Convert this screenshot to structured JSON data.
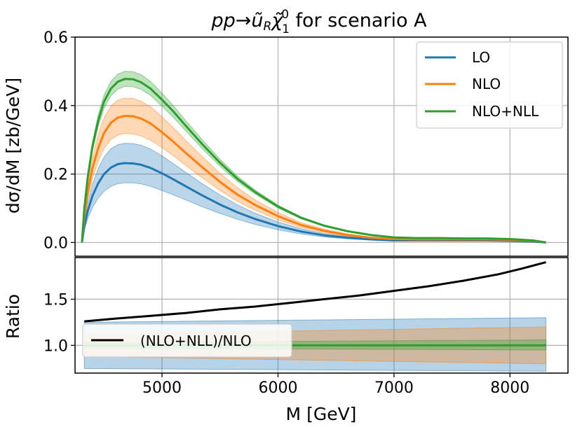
{
  "chart_data": [
    {
      "type": "line",
      "panel": "top",
      "title_parts": {
        "main": "pp→ũ",
        "sub": "R",
        "chi": "χ̃",
        "sup": "0",
        "sub2": "1",
        "rest": " for scenario A"
      },
      "xlabel": "M [GeV]",
      "ylabel": "dσ/dM [zb/GeV]",
      "xlim": [
        4250,
        8500
      ],
      "ylim": [
        -0.04,
        0.6
      ],
      "yticks": [
        0.0,
        0.2,
        0.4,
        0.6
      ],
      "ytick_labels": [
        "0.0",
        "0.2",
        "0.4",
        "0.6"
      ],
      "grid": true,
      "legend_position": "top-right",
      "x": [
        4310,
        4330,
        4360,
        4400,
        4450,
        4500,
        4560,
        4620,
        4680,
        4750,
        4820,
        4900,
        5000,
        5100,
        5200,
        5350,
        5500,
        5650,
        5800,
        6000,
        6200,
        6400,
        6600,
        6800,
        7000,
        7200,
        7400,
        7600,
        7800,
        8000,
        8200,
        8310
      ],
      "series": [
        {
          "name": "LO",
          "color": "#1f77b4",
          "values": [
            0.0,
            0.048,
            0.093,
            0.136,
            0.173,
            0.2,
            0.219,
            0.229,
            0.232,
            0.231,
            0.227,
            0.218,
            0.202,
            0.184,
            0.165,
            0.137,
            0.111,
            0.088,
            0.069,
            0.048,
            0.032,
            0.021,
            0.014,
            0.009,
            0.006,
            0.006,
            0.006,
            0.006,
            0.006,
            0.005,
            0.003,
            0.0
          ],
          "band_lower": [
            0.0,
            0.036,
            0.07,
            0.102,
            0.13,
            0.15,
            0.164,
            0.172,
            0.174,
            0.174,
            0.171,
            0.164,
            0.152,
            0.139,
            0.125,
            0.104,
            0.085,
            0.068,
            0.053,
            0.037,
            0.025,
            0.016,
            0.011,
            0.007,
            0.004,
            0.004,
            0.004,
            0.004,
            0.004,
            0.004,
            0.002,
            0.0
          ],
          "band_upper": [
            0.0,
            0.06,
            0.116,
            0.17,
            0.216,
            0.25,
            0.274,
            0.286,
            0.29,
            0.289,
            0.284,
            0.273,
            0.253,
            0.23,
            0.206,
            0.171,
            0.139,
            0.11,
            0.086,
            0.06,
            0.04,
            0.026,
            0.018,
            0.011,
            0.008,
            0.008,
            0.008,
            0.008,
            0.008,
            0.006,
            0.004,
            0.0
          ]
        },
        {
          "name": "NLO",
          "color": "#ff7f0e",
          "values": [
            0.0,
            0.077,
            0.148,
            0.217,
            0.276,
            0.32,
            0.35,
            0.365,
            0.37,
            0.369,
            0.362,
            0.348,
            0.322,
            0.294,
            0.263,
            0.219,
            0.177,
            0.14,
            0.11,
            0.077,
            0.051,
            0.034,
            0.022,
            0.014,
            0.01,
            0.009,
            0.009,
            0.009,
            0.009,
            0.008,
            0.005,
            0.0
          ],
          "band_lower": [
            0.0,
            0.066,
            0.127,
            0.187,
            0.237,
            0.275,
            0.301,
            0.314,
            0.318,
            0.317,
            0.311,
            0.299,
            0.277,
            0.253,
            0.226,
            0.188,
            0.152,
            0.12,
            0.095,
            0.066,
            0.044,
            0.029,
            0.019,
            0.012,
            0.008,
            0.008,
            0.008,
            0.008,
            0.008,
            0.007,
            0.004,
            0.0
          ],
          "band_upper": [
            0.0,
            0.088,
            0.169,
            0.247,
            0.315,
            0.365,
            0.399,
            0.416,
            0.422,
            0.421,
            0.413,
            0.397,
            0.367,
            0.335,
            0.3,
            0.25,
            0.202,
            0.16,
            0.125,
            0.088,
            0.058,
            0.039,
            0.025,
            0.016,
            0.011,
            0.01,
            0.01,
            0.01,
            0.01,
            0.009,
            0.006,
            0.0
          ]
        },
        {
          "name": "NLO+NLL",
          "color": "#2ca02c",
          "values": [
            0.0,
            0.099,
            0.191,
            0.28,
            0.356,
            0.412,
            0.45,
            0.47,
            0.478,
            0.477,
            0.468,
            0.45,
            0.417,
            0.382,
            0.343,
            0.286,
            0.233,
            0.186,
            0.148,
            0.105,
            0.072,
            0.049,
            0.033,
            0.022,
            0.015,
            0.013,
            0.013,
            0.012,
            0.012,
            0.01,
            0.006,
            0.0
          ],
          "band_lower": [
            0.0,
            0.094,
            0.182,
            0.267,
            0.339,
            0.393,
            0.429,
            0.448,
            0.456,
            0.455,
            0.447,
            0.43,
            0.398,
            0.365,
            0.328,
            0.273,
            0.223,
            0.178,
            0.142,
            0.101,
            0.069,
            0.047,
            0.032,
            0.021,
            0.014,
            0.012,
            0.012,
            0.011,
            0.011,
            0.009,
            0.005,
            0.0
          ],
          "band_upper": [
            0.0,
            0.104,
            0.2,
            0.293,
            0.373,
            0.431,
            0.471,
            0.492,
            0.5,
            0.499,
            0.49,
            0.471,
            0.436,
            0.399,
            0.358,
            0.299,
            0.243,
            0.194,
            0.154,
            0.109,
            0.075,
            0.051,
            0.034,
            0.023,
            0.016,
            0.014,
            0.014,
            0.013,
            0.013,
            0.011,
            0.007,
            0.0
          ]
        }
      ]
    },
    {
      "type": "line",
      "panel": "bottom",
      "xlabel": "M [GeV]",
      "ylabel": "Ratio",
      "xlim": [
        4250,
        8500
      ],
      "ylim": [
        0.7,
        1.95
      ],
      "xticks": [
        5000,
        6000,
        7000,
        8000
      ],
      "xtick_labels": [
        "5000",
        "6000",
        "7000",
        "8000"
      ],
      "yticks": [
        1.0,
        1.5
      ],
      "ytick_labels": [
        "1.0",
        "1.5"
      ],
      "grid": true,
      "legend_position": "bottom-left",
      "x": [
        4330,
        4600,
        4900,
        5200,
        5500,
        5800,
        6100,
        6400,
        6700,
        7000,
        7300,
        7600,
        7900,
        8100,
        8310
      ],
      "series": [
        {
          "name": "(NLO+NLL)/NLO",
          "color": "#000000",
          "values": [
            1.26,
            1.29,
            1.32,
            1.35,
            1.39,
            1.42,
            1.46,
            1.5,
            1.54,
            1.59,
            1.64,
            1.7,
            1.77,
            1.83,
            1.9
          ]
        }
      ],
      "bands": [
        {
          "name": "LO",
          "color": "#1f77b4",
          "lower": [
            0.75,
            0.72
          ],
          "upper": [
            1.25,
            1.3
          ]
        },
        {
          "name": "NLO",
          "color": "#ff7f0e",
          "lower": [
            0.88,
            0.8
          ],
          "upper": [
            1.12,
            1.2
          ]
        },
        {
          "name": "NLO+NLL",
          "color": "#2ca02c",
          "lower": [
            0.97,
            0.95
          ],
          "upper": [
            1.03,
            1.06
          ]
        }
      ]
    }
  ]
}
